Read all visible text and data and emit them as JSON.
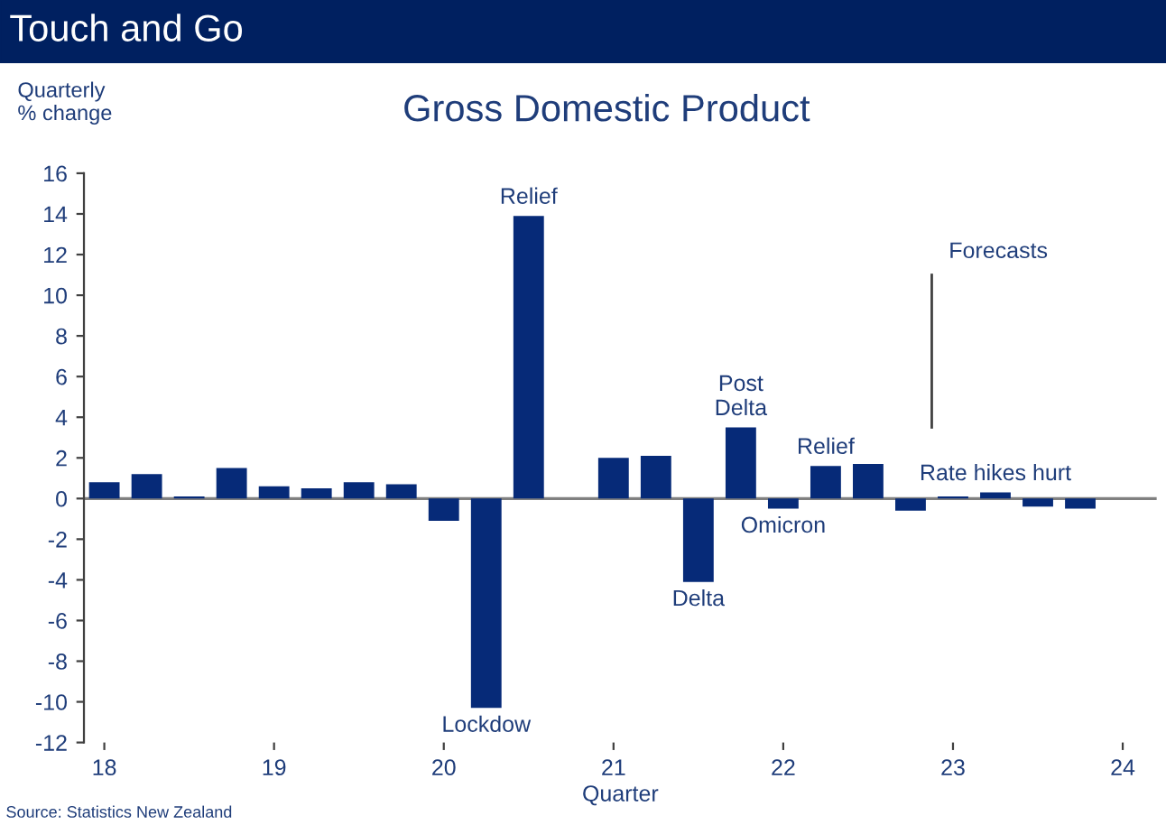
{
  "chart_data": {
    "type": "bar",
    "title": "Touch and Go",
    "subtitle": "Gross Domestic Product",
    "ylabel": "Quarterly\n% change",
    "xlabel": "Quarter",
    "x": [
      2018,
      2018.25,
      2018.5,
      2018.75,
      2019,
      2019.25,
      2019.5,
      2019.75,
      2020,
      2020.25,
      2020.5,
      2020.75,
      2021,
      2021.25,
      2021.5,
      2021.75,
      2022,
      2022.25,
      2022.5,
      2022.75,
      2023,
      2023.25,
      2023.5,
      2023.75
    ],
    "values": [
      0.8,
      1.2,
      0.1,
      1.5,
      0.6,
      0.5,
      0.8,
      0.7,
      -1.1,
      -10.3,
      13.9,
      null,
      2.0,
      2.1,
      -4.1,
      3.5,
      -0.5,
      1.6,
      1.7,
      -0.6,
      0.1,
      0.3,
      -0.4,
      -0.5
    ],
    "color": "#062a78",
    "xlim": [
      2017.88,
      2024.2
    ],
    "xticks": [
      {
        "value": 2018,
        "label": "18"
      },
      {
        "value": 2019,
        "label": "19"
      },
      {
        "value": 2020,
        "label": "20"
      },
      {
        "value": 2021,
        "label": "21"
      },
      {
        "value": 2022,
        "label": "22"
      },
      {
        "value": 2023,
        "label": "23"
      },
      {
        "value": 2024,
        "label": "24"
      }
    ],
    "ylim": [
      -12,
      16
    ],
    "yticks": [
      -12,
      -10,
      -8,
      -6,
      -4,
      -2,
      0,
      2,
      4,
      6,
      8,
      10,
      12,
      14,
      16
    ],
    "grid": false,
    "ref_lines": [
      {
        "axis": "y",
        "value": 0,
        "color": "#808080"
      },
      {
        "axis": "x",
        "value": 2022.875,
        "label": "Forecasts",
        "color": "#404040"
      }
    ],
    "annotations": [
      {
        "text": "Relief",
        "x": 2020.5,
        "y": 13.9
      },
      {
        "text": "Lockdow",
        "x": 2020.25,
        "y": -10.3
      },
      {
        "text": "Delta",
        "x": 2021.5,
        "y": -4.1
      },
      {
        "text": "Post\nDelta",
        "x": 2021.75,
        "y": 3.5
      },
      {
        "text": "Omicron",
        "x": 2022,
        "y": -0.5
      },
      {
        "text": "Relief",
        "x": 2022.25,
        "y": 1.6
      },
      {
        "text": "Rate hikes hurt",
        "x": 2023.25,
        "y": 0.3
      },
      "Source: Statistics New Zealand"
    ]
  }
}
